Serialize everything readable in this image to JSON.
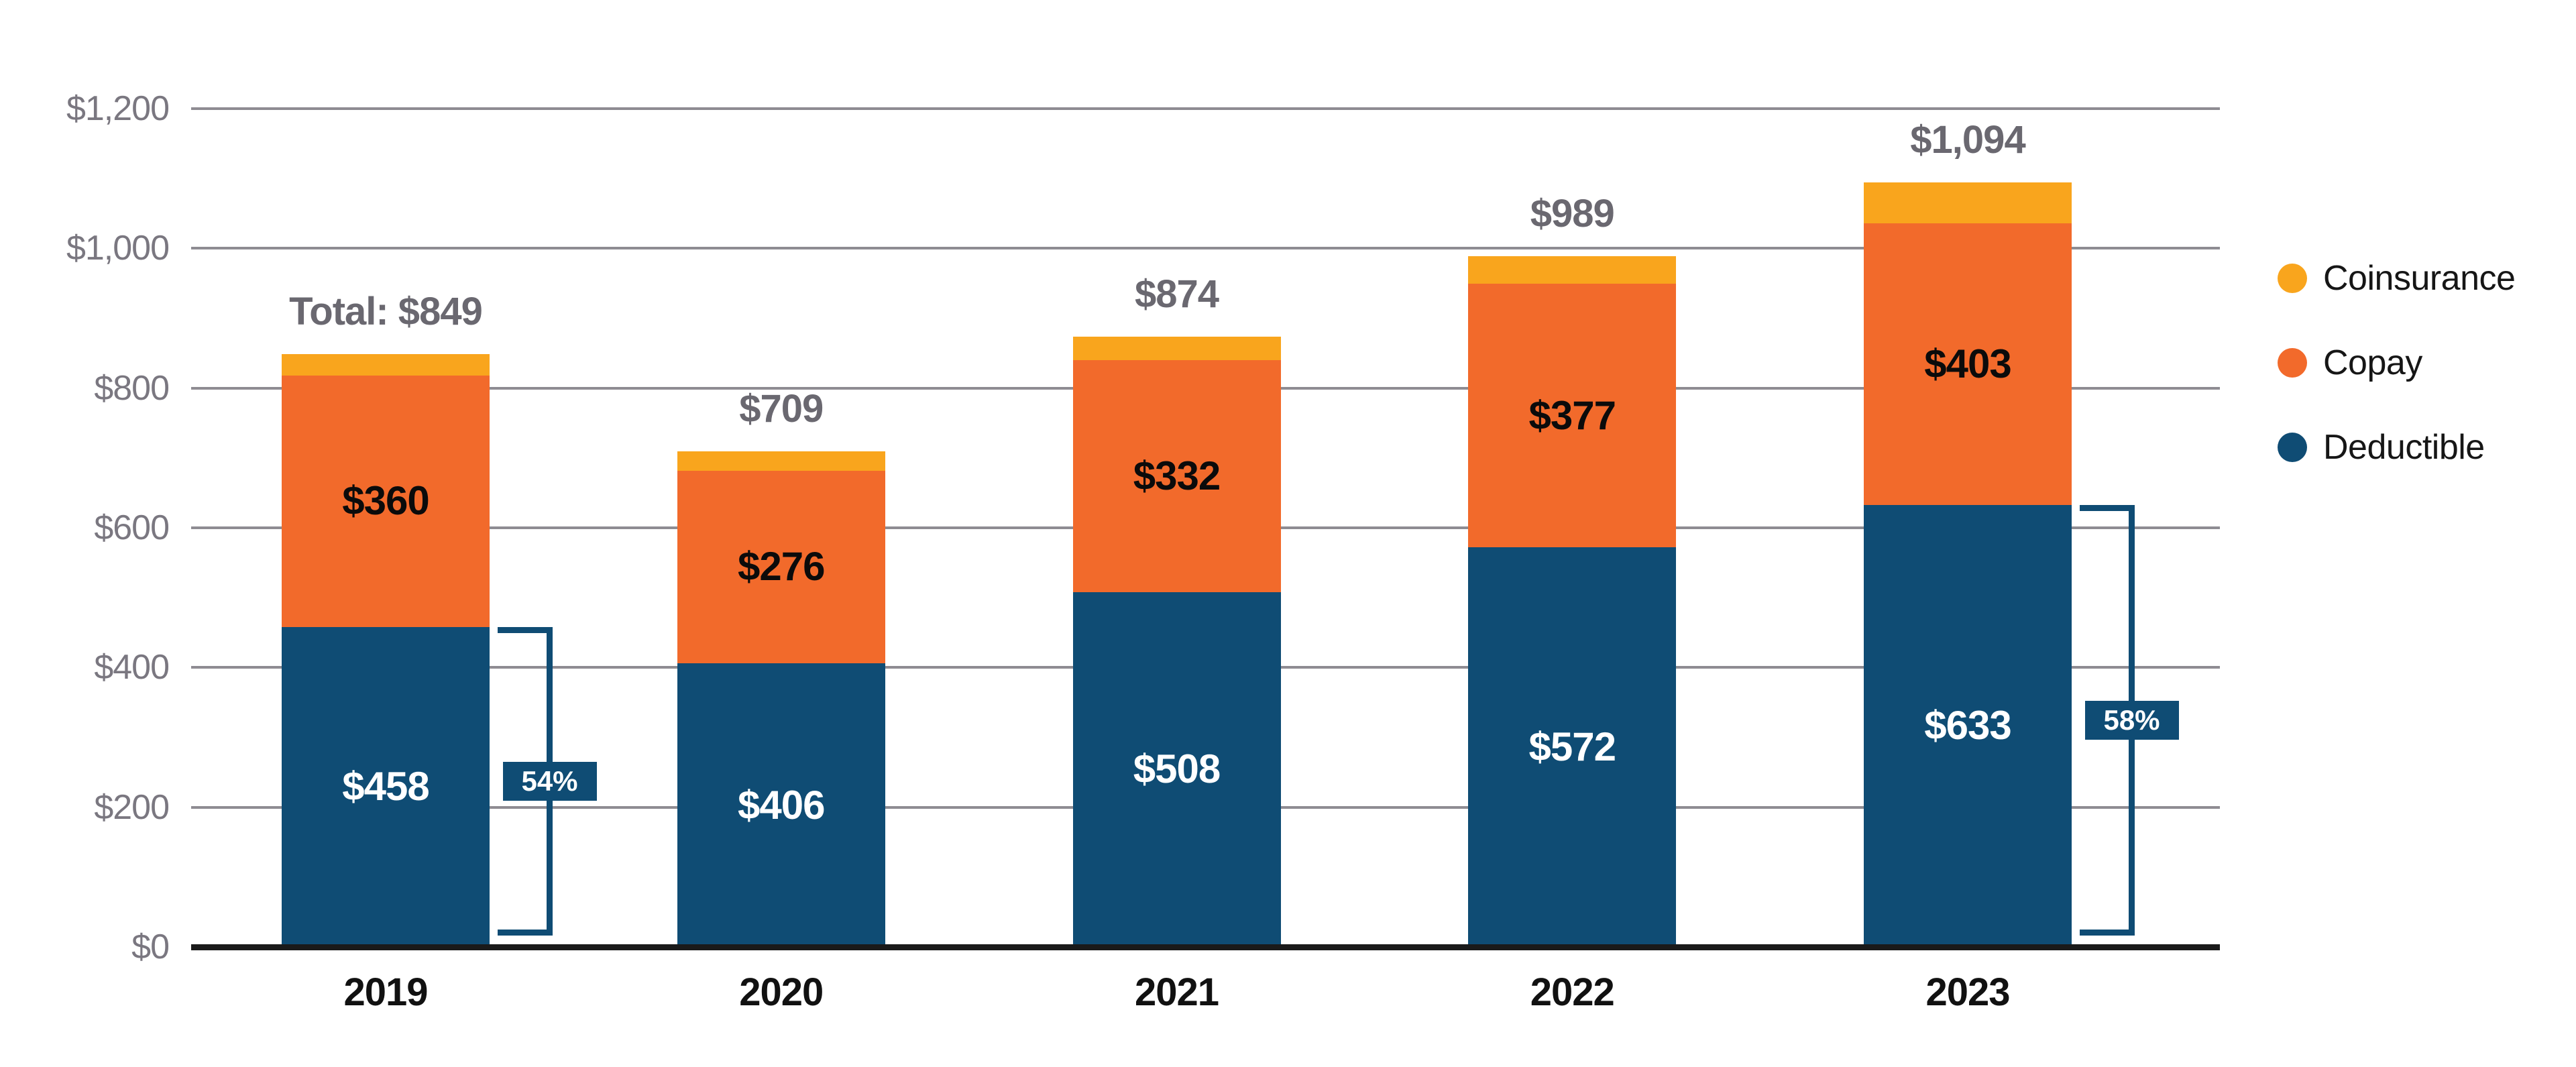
{
  "chart_data": {
    "type": "bar",
    "stacked": true,
    "title": "",
    "categories": [
      "2019",
      "2020",
      "2021",
      "2022",
      "2023"
    ],
    "series": [
      {
        "name": "Deductible",
        "color": "#0F4C74",
        "values": [
          458,
          406,
          508,
          572,
          633
        ],
        "labels": [
          "$458",
          "$406",
          "$508",
          "$572",
          "$633"
        ],
        "label_color": "#FFFFFF"
      },
      {
        "name": "Copay",
        "color": "#F26A2B",
        "values": [
          360,
          276,
          332,
          377,
          403
        ],
        "labels": [
          "$360",
          "$276",
          "$332",
          "$377",
          "$403"
        ],
        "label_color": "#0B0B0B"
      },
      {
        "name": "Coinsurance",
        "color": "#F9A51D",
        "values": [
          31,
          27,
          34,
          40,
          58
        ],
        "labels": [
          "",
          "",
          "",
          "",
          ""
        ],
        "label_color": "#0B0B0B"
      }
    ],
    "totals": [
      "Total: $849",
      "$709",
      "$874",
      "$989",
      "$1,094"
    ],
    "brackets": [
      {
        "category": "2019",
        "label": "54%"
      },
      {
        "category": "2023",
        "label": "58%"
      }
    ],
    "y_ticks": [
      {
        "label": "$0",
        "value": 0
      },
      {
        "label": "$200",
        "value": 200
      },
      {
        "label": "$400",
        "value": 400
      },
      {
        "label": "$600",
        "value": 600
      },
      {
        "label": "$800",
        "value": 800
      },
      {
        "label": "$1,000",
        "value": 1000
      },
      {
        "label": "$1,200",
        "value": 1200
      }
    ],
    "ylim": [
      0,
      1200
    ],
    "grid": true,
    "legend_position": "right"
  },
  "legend": {
    "items": [
      {
        "label": "Coinsurance",
        "color": "#F9A51D"
      },
      {
        "label": "Copay",
        "color": "#F26A2B"
      },
      {
        "label": "Deductible",
        "color": "#0F4C74"
      }
    ]
  },
  "styles": {
    "grid_color": "#8E8C92",
    "axis_color": "#1A1A1A",
    "tick_label_color": "#7A7780",
    "total_label_color": "#6A6870",
    "year_label_color": "#111111",
    "bracket_color": "#0F4C74",
    "bracket_text_color": "#FFFFFF",
    "background": "#FFFFFF"
  }
}
